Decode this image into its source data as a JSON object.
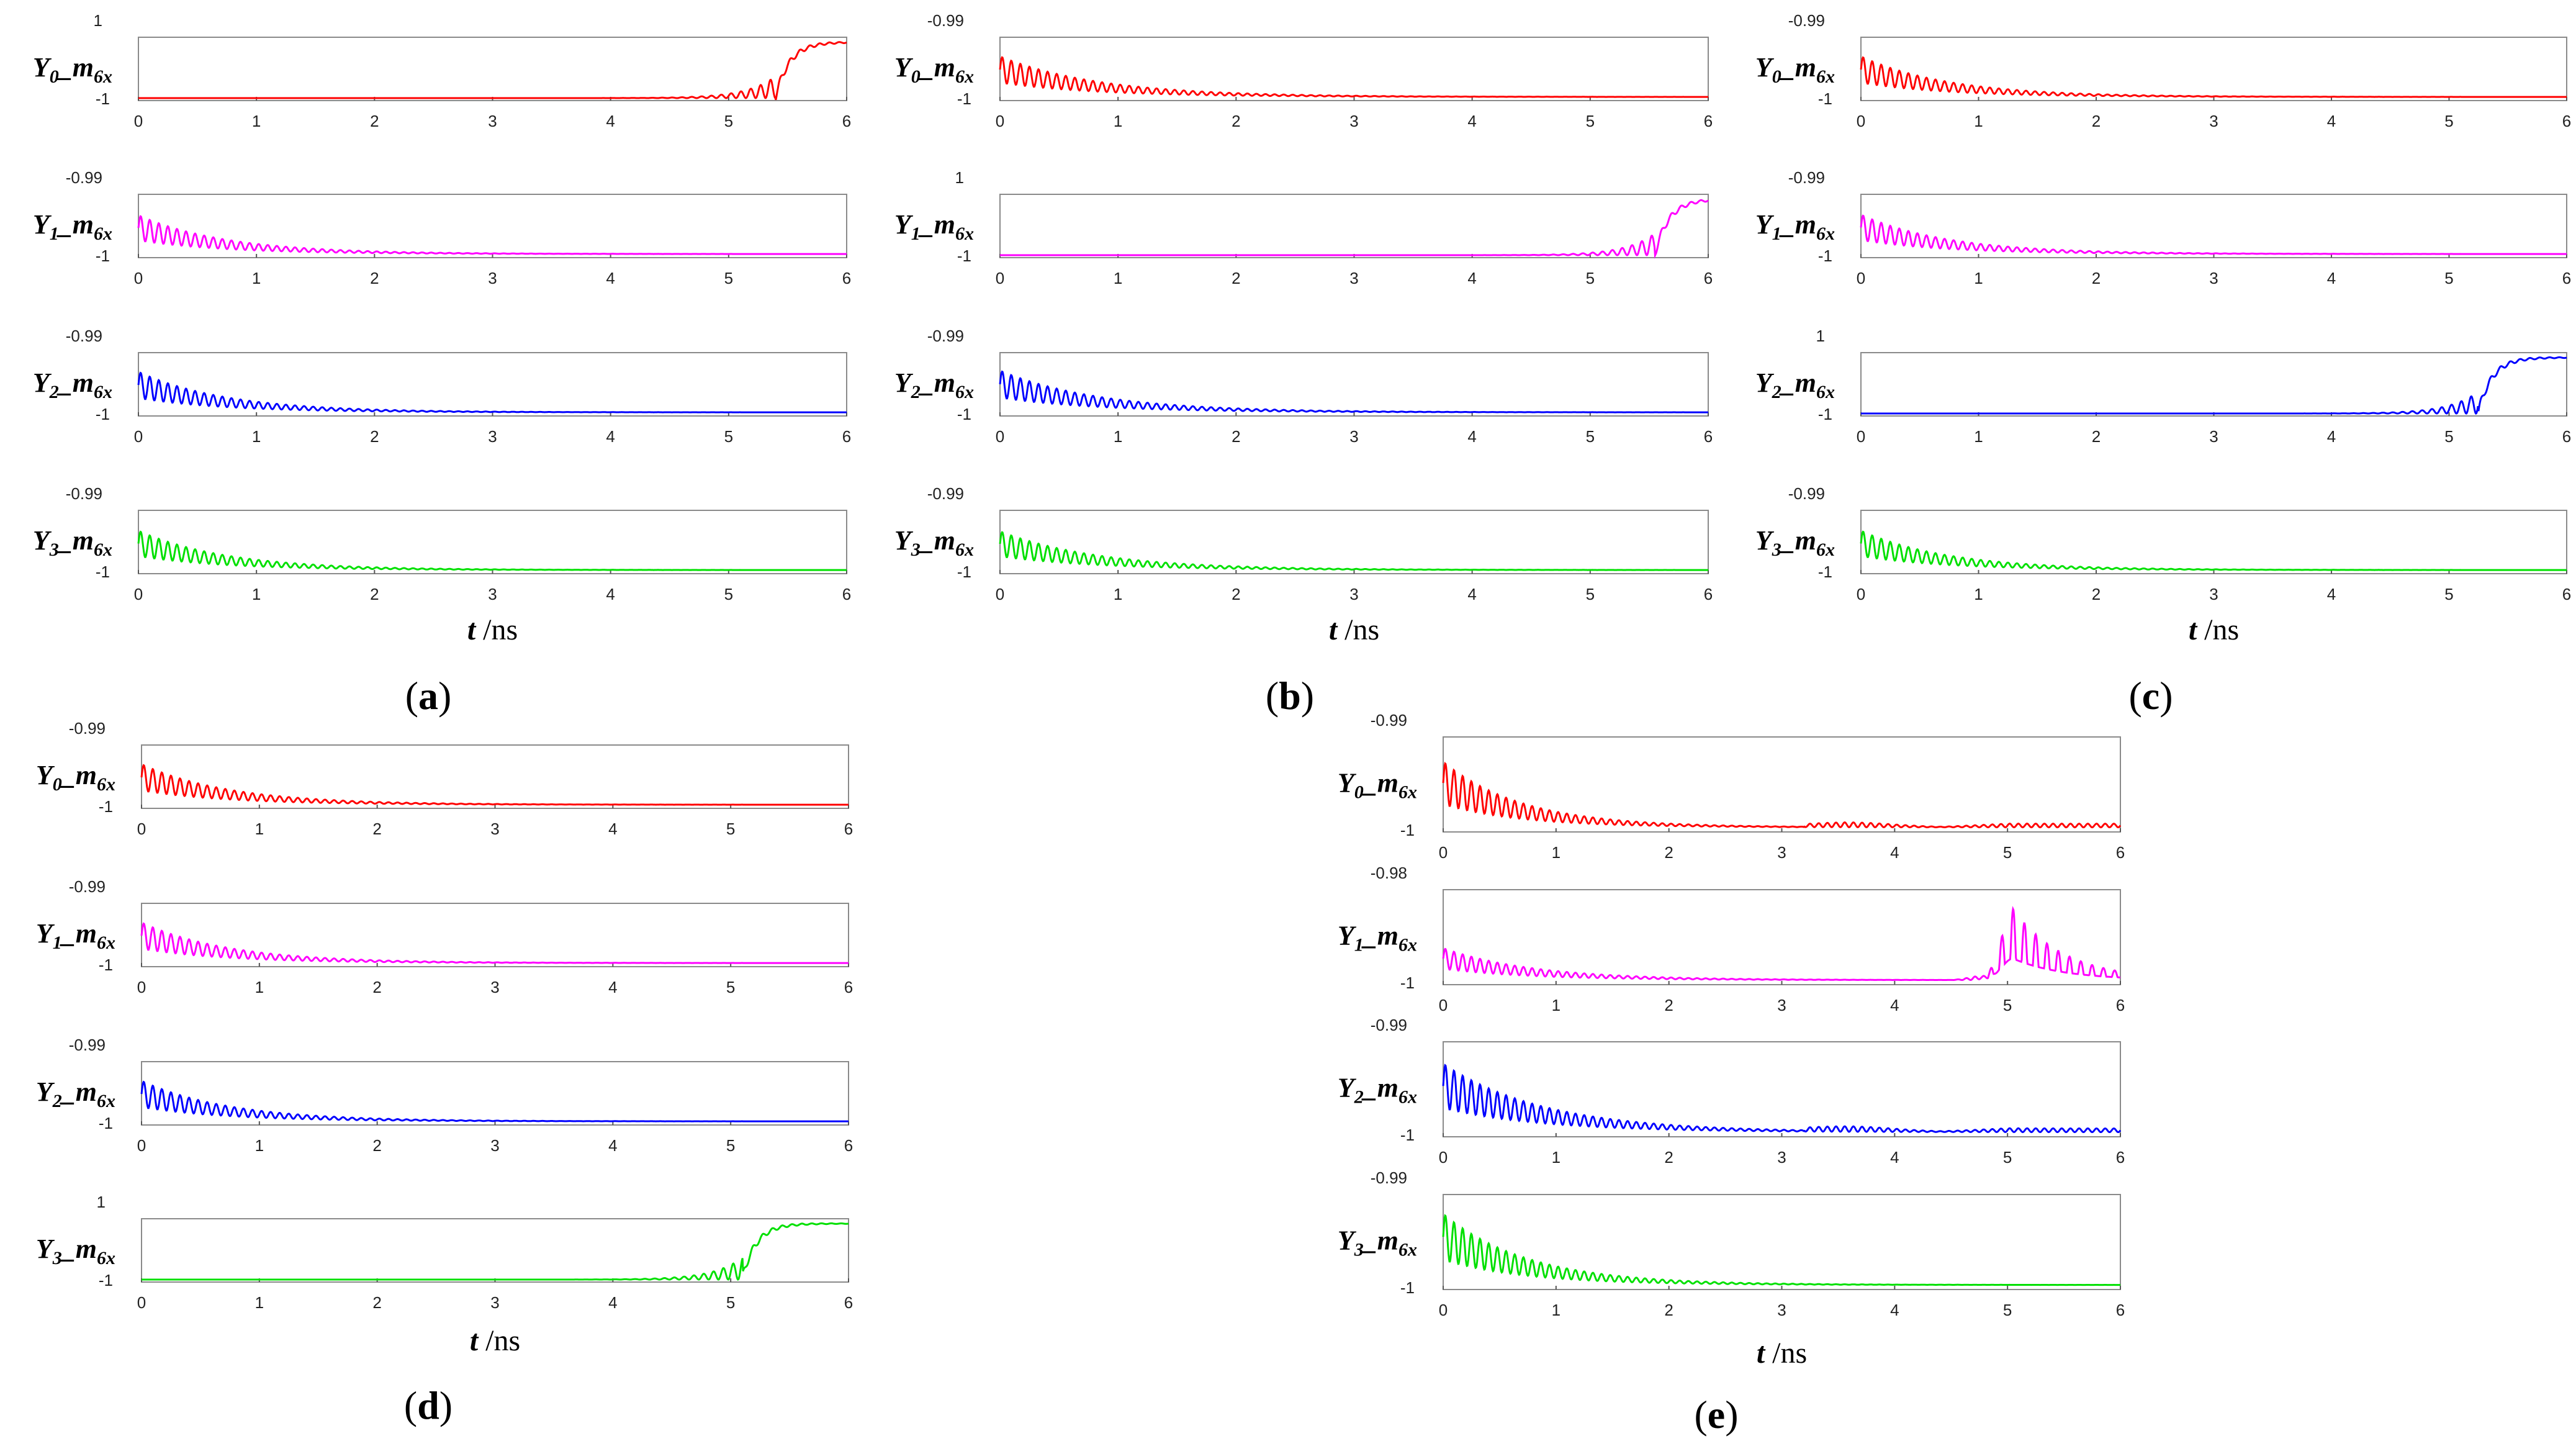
{
  "figure": {
    "colors": {
      "Y0": "#ff0000",
      "Y1": "#ff00ff",
      "Y2": "#0000ff",
      "Y3": "#00e000"
    }
  },
  "chart_data": [
    {
      "panel": "a",
      "panel_label": "a",
      "xlabel_t": "t",
      "xlabel_unit": "/ns",
      "subplots": [
        {
          "name": "Y0",
          "ylabel_main": "Y",
          "ylabel_sub": "0",
          "ylabel_m": "_m",
          "ylabel_msub": "6x",
          "type": "line",
          "ylim": [
            -1,
            1
          ],
          "ytick_top": "1",
          "ytick_bottom": "-1",
          "xlim": [
            0,
            6
          ],
          "xticks": [
            "0",
            "1",
            "2",
            "3",
            "4",
            "5",
            "6"
          ],
          "behavior": "switch",
          "switch_time": 5.45,
          "color": "#ff0000"
        },
        {
          "name": "Y1",
          "ylabel_main": "Y",
          "ylabel_sub": "1",
          "ylabel_m": "_m",
          "ylabel_msub": "6x",
          "type": "line",
          "ylim": [
            -1,
            -0.99
          ],
          "ytick_top": "-0.99",
          "ytick_bottom": "-1",
          "xlim": [
            0,
            6
          ],
          "xticks": [
            "0",
            "1",
            "2",
            "3",
            "4",
            "5",
            "6"
          ],
          "behavior": "decay",
          "peak": 0.65,
          "decay_tau": 0.75,
          "color": "#ff00ff"
        },
        {
          "name": "Y2",
          "ylabel_main": "Y",
          "ylabel_sub": "2",
          "ylabel_m": "_m",
          "ylabel_msub": "6x",
          "type": "line",
          "ylim": [
            -1,
            -0.99
          ],
          "ytick_top": "-0.99",
          "ytick_bottom": "-1",
          "xlim": [
            0,
            6
          ],
          "xticks": [
            "0",
            "1",
            "2",
            "3",
            "4",
            "5",
            "6"
          ],
          "behavior": "decay",
          "peak": 0.68,
          "decay_tau": 0.75,
          "color": "#0000ff"
        },
        {
          "name": "Y3",
          "ylabel_main": "Y",
          "ylabel_sub": "3",
          "ylabel_m": "_m",
          "ylabel_msub": "6x",
          "type": "line",
          "ylim": [
            -1,
            -0.99
          ],
          "ytick_top": "-0.99",
          "ytick_bottom": "-1",
          "xlim": [
            0,
            6
          ],
          "xticks": [
            "0",
            "1",
            "2",
            "3",
            "4",
            "5",
            "6"
          ],
          "behavior": "decay",
          "peak": 0.66,
          "decay_tau": 0.75,
          "color": "#00e000"
        }
      ]
    },
    {
      "panel": "b",
      "panel_label": "b",
      "xlabel_t": "t",
      "xlabel_unit": "/ns",
      "subplots": [
        {
          "name": "Y0",
          "ylabel_main": "Y",
          "ylabel_sub": "0",
          "ylabel_m": "_m",
          "ylabel_msub": "6x",
          "type": "line",
          "ylim": [
            -1,
            -0.99
          ],
          "ytick_top": "-0.99",
          "ytick_bottom": "-1",
          "xlim": [
            0,
            6
          ],
          "xticks": [
            "0",
            "1",
            "2",
            "3",
            "4",
            "5",
            "6"
          ],
          "behavior": "decay",
          "peak": 0.68,
          "decay_tau": 0.85,
          "color": "#ff0000"
        },
        {
          "name": "Y1",
          "ylabel_main": "Y",
          "ylabel_sub": "1",
          "ylabel_m": "_m",
          "ylabel_msub": "6x",
          "type": "line",
          "ylim": [
            -1,
            1
          ],
          "ytick_top": "1",
          "ytick_bottom": "-1",
          "xlim": [
            0,
            6
          ],
          "xticks": [
            "0",
            "1",
            "2",
            "3",
            "4",
            "5",
            "6"
          ],
          "behavior": "switch",
          "switch_time": 5.6,
          "color": "#ff00ff"
        },
        {
          "name": "Y2",
          "ylabel_main": "Y",
          "ylabel_sub": "2",
          "ylabel_m": "_m",
          "ylabel_msub": "6x",
          "type": "line",
          "ylim": [
            -1,
            -0.99
          ],
          "ytick_top": "-0.99",
          "ytick_bottom": "-1",
          "xlim": [
            0,
            6
          ],
          "xticks": [
            "0",
            "1",
            "2",
            "3",
            "4",
            "5",
            "6"
          ],
          "behavior": "decay",
          "peak": 0.7,
          "decay_tau": 0.85,
          "color": "#0000ff"
        },
        {
          "name": "Y3",
          "ylabel_main": "Y",
          "ylabel_sub": "3",
          "ylabel_m": "_m",
          "ylabel_msub": "6x",
          "type": "line",
          "ylim": [
            -1,
            -0.99
          ],
          "ytick_top": "-0.99",
          "ytick_bottom": "-1",
          "xlim": [
            0,
            6
          ],
          "xticks": [
            "0",
            "1",
            "2",
            "3",
            "4",
            "5",
            "6"
          ],
          "behavior": "decay",
          "peak": 0.65,
          "decay_tau": 0.85,
          "color": "#00e000"
        }
      ]
    },
    {
      "panel": "c",
      "panel_label": "c",
      "xlabel_t": "t",
      "xlabel_unit": "/ns",
      "subplots": [
        {
          "name": "Y0",
          "ylabel_main": "Y",
          "ylabel_sub": "0",
          "ylabel_m": "_m",
          "ylabel_msub": "6x",
          "type": "line",
          "ylim": [
            -1,
            -0.99
          ],
          "ytick_top": "-0.99",
          "ytick_bottom": "-1",
          "xlim": [
            0,
            6
          ],
          "xticks": [
            "0",
            "1",
            "2",
            "3",
            "4",
            "5",
            "6"
          ],
          "behavior": "decay",
          "peak": 0.68,
          "decay_tau": 0.75,
          "color": "#ff0000"
        },
        {
          "name": "Y1",
          "ylabel_main": "Y",
          "ylabel_sub": "1",
          "ylabel_m": "_m",
          "ylabel_msub": "6x",
          "type": "line",
          "ylim": [
            -1,
            -0.99
          ],
          "ytick_top": "-0.99",
          "ytick_bottom": "-1",
          "xlim": [
            0,
            6
          ],
          "xticks": [
            "0",
            "1",
            "2",
            "3",
            "4",
            "5",
            "6"
          ],
          "behavior": "decay",
          "peak": 0.66,
          "decay_tau": 0.75,
          "color": "#ff00ff"
        },
        {
          "name": "Y2",
          "ylabel_main": "Y",
          "ylabel_sub": "2",
          "ylabel_m": "_m",
          "ylabel_msub": "6x",
          "type": "line",
          "ylim": [
            -1,
            1
          ],
          "ytick_top": "1",
          "ytick_bottom": "-1",
          "xlim": [
            0,
            6
          ],
          "xticks": [
            "0",
            "1",
            "2",
            "3",
            "4",
            "5",
            "6"
          ],
          "behavior": "switch",
          "switch_time": 5.3,
          "color": "#0000ff"
        },
        {
          "name": "Y3",
          "ylabel_main": "Y",
          "ylabel_sub": "3",
          "ylabel_m": "_m",
          "ylabel_msub": "6x",
          "type": "line",
          "ylim": [
            -1,
            -0.99
          ],
          "ytick_top": "-0.99",
          "ytick_bottom": "-1",
          "xlim": [
            0,
            6
          ],
          "xticks": [
            "0",
            "1",
            "2",
            "3",
            "4",
            "5",
            "6"
          ],
          "behavior": "decay",
          "peak": 0.66,
          "decay_tau": 0.75,
          "color": "#00e000"
        }
      ]
    },
    {
      "panel": "d",
      "panel_label": "d",
      "xlabel_t": "t",
      "xlabel_unit": "/ns",
      "subplots": [
        {
          "name": "Y0",
          "ylabel_main": "Y",
          "ylabel_sub": "0",
          "ylabel_m": "_m",
          "ylabel_msub": "6x",
          "type": "line",
          "ylim": [
            -1,
            -0.99
          ],
          "ytick_top": "-0.99",
          "ytick_bottom": "-1",
          "xlim": [
            0,
            6
          ],
          "xticks": [
            "0",
            "1",
            "2",
            "3",
            "4",
            "5",
            "6"
          ],
          "behavior": "decay",
          "peak": 0.68,
          "decay_tau": 0.75,
          "color": "#ff0000"
        },
        {
          "name": "Y1",
          "ylabel_main": "Y",
          "ylabel_sub": "1",
          "ylabel_m": "_m",
          "ylabel_msub": "6x",
          "type": "line",
          "ylim": [
            -1,
            -0.99
          ],
          "ytick_top": "-0.99",
          "ytick_bottom": "-1",
          "xlim": [
            0,
            6
          ],
          "xticks": [
            "0",
            "1",
            "2",
            "3",
            "4",
            "5",
            "6"
          ],
          "behavior": "decay",
          "peak": 0.68,
          "decay_tau": 0.75,
          "color": "#ff00ff"
        },
        {
          "name": "Y2",
          "ylabel_main": "Y",
          "ylabel_sub": "2",
          "ylabel_m": "_m",
          "ylabel_msub": "6x",
          "type": "line",
          "ylim": [
            -1,
            -0.99
          ],
          "ytick_top": "-0.99",
          "ytick_bottom": "-1",
          "xlim": [
            0,
            6
          ],
          "xticks": [
            "0",
            "1",
            "2",
            "3",
            "4",
            "5",
            "6"
          ],
          "behavior": "decay",
          "peak": 0.68,
          "decay_tau": 0.75,
          "color": "#0000ff"
        },
        {
          "name": "Y3",
          "ylabel_main": "Y",
          "ylabel_sub": "3",
          "ylabel_m": "_m",
          "ylabel_msub": "6x",
          "type": "line",
          "ylim": [
            -1,
            1
          ],
          "ytick_top": "1",
          "ytick_bottom": "-1",
          "xlim": [
            0,
            6
          ],
          "xticks": [
            "0",
            "1",
            "2",
            "3",
            "4",
            "5",
            "6"
          ],
          "behavior": "switch",
          "switch_time": 5.15,
          "color": "#00e000"
        }
      ]
    },
    {
      "panel": "e",
      "panel_label": "e",
      "xlabel_t": "t",
      "xlabel_unit": "/ns",
      "subplots": [
        {
          "name": "Y0",
          "ylabel_main": "Y",
          "ylabel_sub": "0",
          "ylabel_m": "_m",
          "ylabel_msub": "6x",
          "type": "line",
          "ylim": [
            -1,
            -0.99
          ],
          "ytick_top": "-0.99",
          "ytick_bottom": "-1",
          "xlim": [
            0,
            6
          ],
          "xticks": [
            "0",
            "1",
            "2",
            "3",
            "4",
            "5",
            "6"
          ],
          "behavior": "decay_ripple",
          "peak": 0.72,
          "decay_tau": 0.7,
          "color": "#ff0000"
        },
        {
          "name": "Y1",
          "ylabel_main": "Y",
          "ylabel_sub": "1",
          "ylabel_m": "_m",
          "ylabel_msub": "6x",
          "type": "line",
          "ylim": [
            -1,
            -0.98
          ],
          "ytick_top": "-0.98",
          "ytick_bottom": "-1",
          "xlim": [
            0,
            6
          ],
          "xticks": [
            "0",
            "1",
            "2",
            "3",
            "4",
            "5",
            "6"
          ],
          "behavior": "decay_burst",
          "peak": 0.35,
          "burst_time": 5.05,
          "burst_peak": 0.78,
          "color": "#ff00ff"
        },
        {
          "name": "Y2",
          "ylabel_main": "Y",
          "ylabel_sub": "2",
          "ylabel_m": "_m",
          "ylabel_msub": "6x",
          "type": "line",
          "ylim": [
            -1,
            -0.99
          ],
          "ytick_top": "-0.99",
          "ytick_bottom": "-1",
          "xlim": [
            0,
            6
          ],
          "xticks": [
            "0",
            "1",
            "2",
            "3",
            "4",
            "5",
            "6"
          ],
          "behavior": "decay_ripple",
          "peak": 0.75,
          "decay_tau": 0.9,
          "color": "#0000ff"
        },
        {
          "name": "Y3",
          "ylabel_main": "Y",
          "ylabel_sub": "3",
          "ylabel_m": "_m",
          "ylabel_msub": "6x",
          "type": "line",
          "ylim": [
            -1,
            -0.99
          ],
          "ytick_top": "-0.99",
          "ytick_bottom": "-1",
          "xlim": [
            0,
            6
          ],
          "xticks": [
            "0",
            "1",
            "2",
            "3",
            "4",
            "5",
            "6"
          ],
          "behavior": "decay",
          "peak": 0.78,
          "decay_tau": 0.75,
          "color": "#00e000"
        }
      ]
    }
  ]
}
